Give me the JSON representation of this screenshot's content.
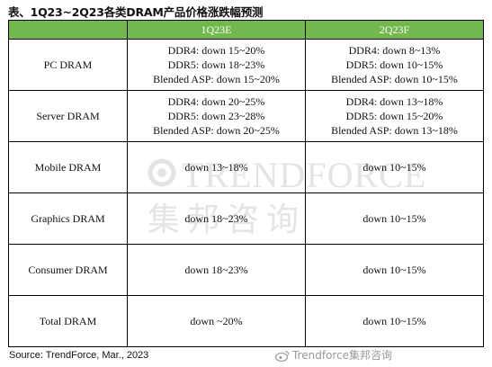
{
  "title": "表、1Q23~2Q23各类DRAM产品价格涨跌幅预测",
  "table": {
    "headers": [
      "",
      "1Q23E",
      "2Q23F"
    ],
    "rows": [
      {
        "label": "PC DRAM",
        "q1": [
          "DDR4: down 15~20%",
          "DDR5: down 18~23%",
          "Blended ASP: down 15~20%"
        ],
        "q2": [
          "DDR4: down 8~13%",
          "DDR5: down 10~15%",
          "Blended ASP: down 10~15%"
        ]
      },
      {
        "label": "Server DRAM",
        "q1": [
          "DDR4: down 20~25%",
          "DDR5: down 23~28%",
          "Blended ASP: down 20~25%"
        ],
        "q2": [
          "DDR4: down 13~18%",
          "DDR5: down 15~20%",
          "Blended ASP: down 13~18%"
        ]
      },
      {
        "label": "Mobile DRAM",
        "q1": [
          "down 13~18%"
        ],
        "q2": [
          "down 10~15%"
        ]
      },
      {
        "label": "Graphics DRAM",
        "q1": [
          "down 18~23%"
        ],
        "q2": [
          "down 10~15%"
        ]
      },
      {
        "label": "Consumer DRAM",
        "q1": [
          "down 18~23%"
        ],
        "q2": [
          "down 10~15%"
        ]
      },
      {
        "label": "Total DRAM",
        "q1": [
          "down ~20%"
        ],
        "q2": [
          "down 10~15%"
        ]
      }
    ]
  },
  "watermark": {
    "brand_en": "TRENDFORCE",
    "brand_zh": "集邦咨询",
    "color": "#e2e2e2"
  },
  "source": "Source: TrendForce, Mar., 2023",
  "weibo_watermark": "Trendforce集邦咨询",
  "colors": {
    "header_bg": "#72b84e",
    "header_text": "#ffffff"
  }
}
